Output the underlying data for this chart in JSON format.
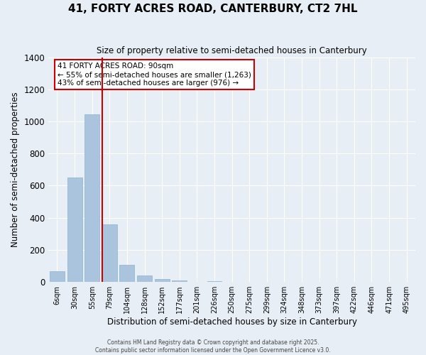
{
  "title": "41, FORTY ACRES ROAD, CANTERBURY, CT2 7HL",
  "subtitle": "Size of property relative to semi-detached houses in Canterbury",
  "xlabel": "Distribution of semi-detached houses by size in Canterbury",
  "ylabel": "Number of semi-detached properties",
  "bin_labels": [
    "6sqm",
    "30sqm",
    "55sqm",
    "79sqm",
    "104sqm",
    "128sqm",
    "152sqm",
    "177sqm",
    "201sqm",
    "226sqm",
    "250sqm",
    "275sqm",
    "299sqm",
    "324sqm",
    "348sqm",
    "373sqm",
    "397sqm",
    "422sqm",
    "446sqm",
    "471sqm",
    "495sqm"
  ],
  "bar_values": [
    65,
    650,
    1045,
    360,
    105,
    40,
    18,
    8,
    0,
    7,
    0,
    0,
    0,
    0,
    0,
    0,
    0,
    0,
    0,
    0,
    0
  ],
  "bar_color": "#aac4de",
  "bar_edge_color": "#8ab4d0",
  "background_color": "#e8eef5",
  "grid_color": "#ffffff",
  "vline_color": "#cc0000",
  "vline_pos": 2.575,
  "ylim": [
    0,
    1400
  ],
  "yticks": [
    0,
    200,
    400,
    600,
    800,
    1000,
    1200,
    1400
  ],
  "annotation_title": "41 FORTY ACRES ROAD: 90sqm",
  "annotation_line2": "← 55% of semi-detached houses are smaller (1,263)",
  "annotation_line3": "43% of semi-detached houses are larger (976) →",
  "annotation_box_facecolor": "#ffffff",
  "annotation_box_edgecolor": "#cc0000",
  "footer1": "Contains HM Land Registry data © Crown copyright and database right 2025.",
  "footer2": "Contains public sector information licensed under the Open Government Licence v3.0."
}
